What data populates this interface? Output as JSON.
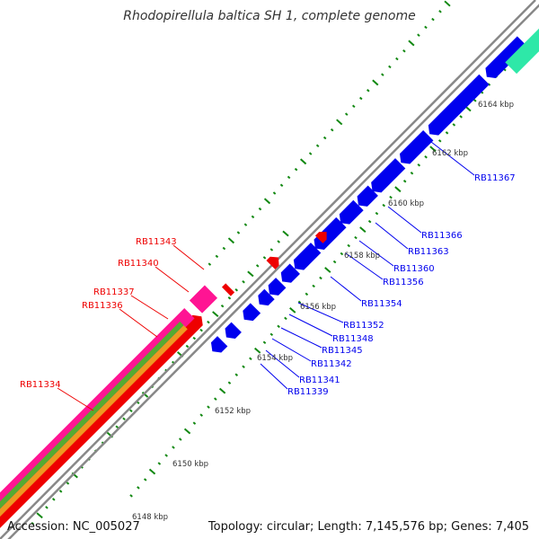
{
  "title": "Rhodopirellula baltica SH 1, complete genome",
  "accession": "Accession: NC_005027",
  "topology": "Topology: circular; Length: 7,145,576 bp; Genes: 7,405",
  "colors": {
    "forward_gene": "#0000ee",
    "reverse_gene": "#ee0000",
    "rna_gene": "#ff1493",
    "teal_gene": "#2ee8a8",
    "purple_gene": "#554499",
    "dna_strand": "#888888",
    "tick": "#118811"
  },
  "scale_labels": [
    "6148 kbp",
    "6150 kbp",
    "6152 kbp",
    "6154 kbp",
    "6156 kbp",
    "6158 kbp",
    "6160 kbp",
    "6162 kbp",
    "6164 kbp"
  ],
  "forward_genes": [
    "RB11339",
    "RB11341",
    "RB11342",
    "RB11345",
    "RB11348",
    "RB11352",
    "RB11354",
    "RB11356",
    "RB11360",
    "RB11363",
    "RB11366",
    "RB11367"
  ],
  "reverse_genes": [
    "RB11334",
    "RB11336",
    "RB11337",
    "RB11340",
    "RB11343"
  ]
}
